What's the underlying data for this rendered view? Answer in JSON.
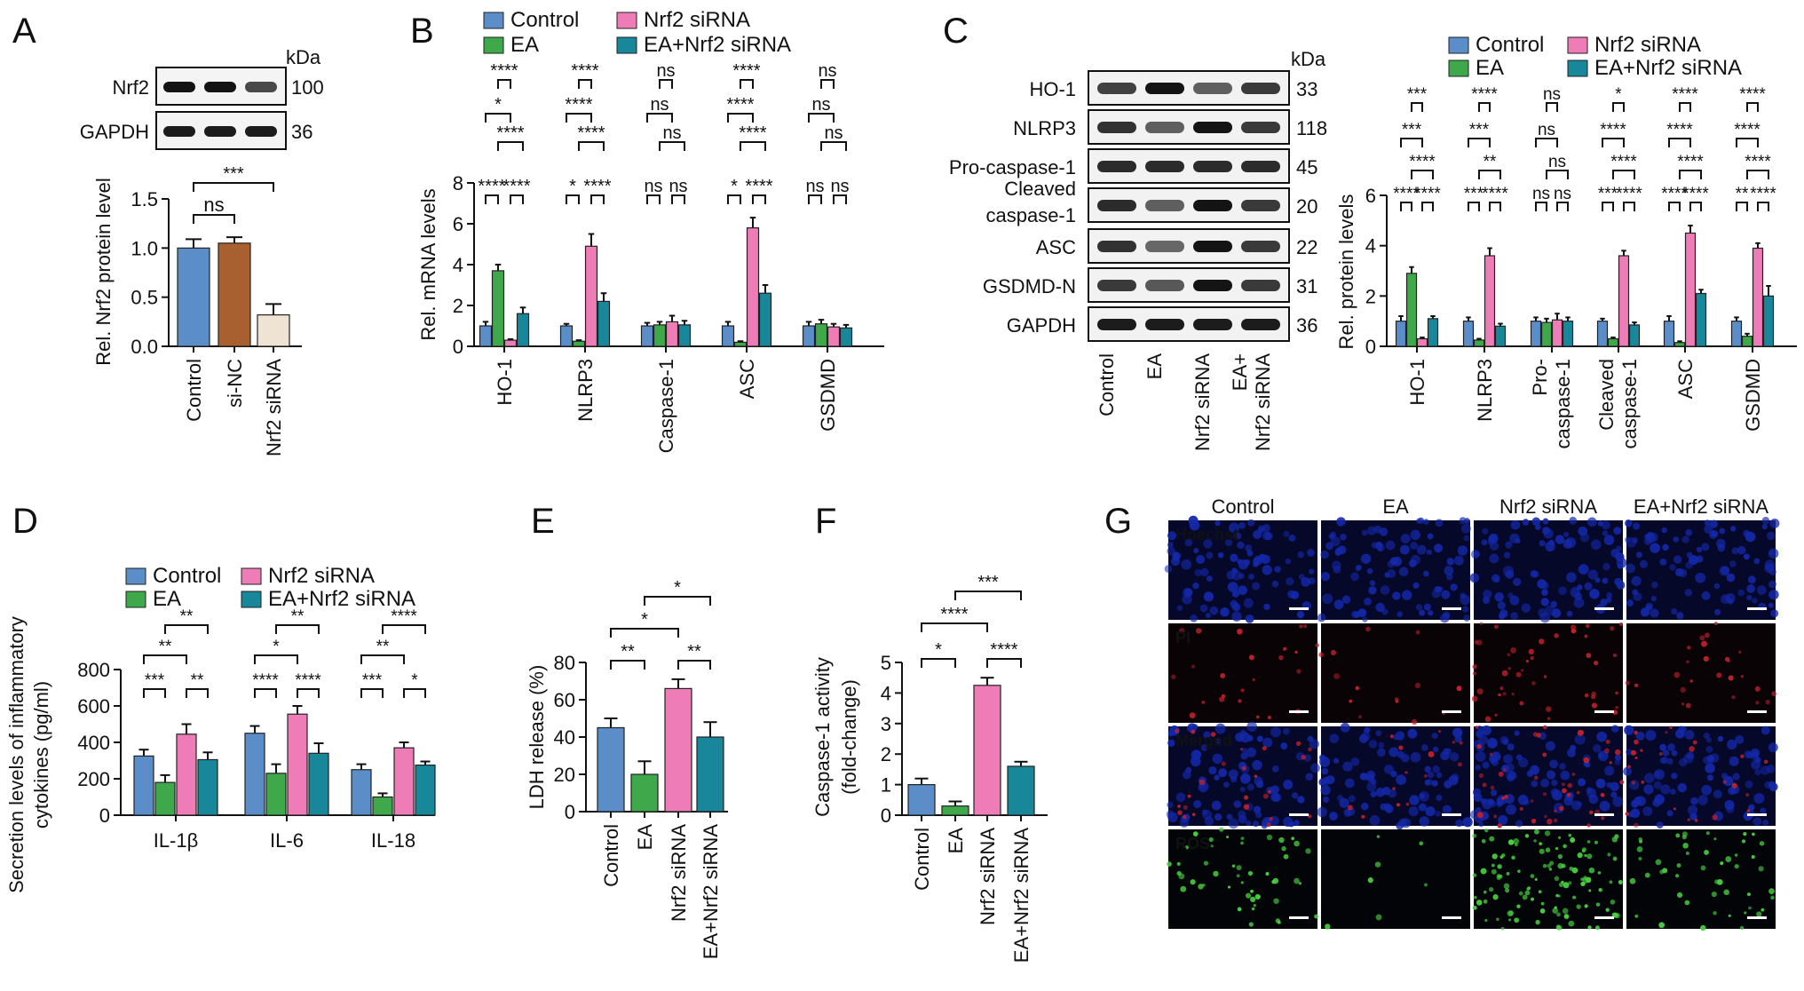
{
  "colors": {
    "control": "#5b8ec9",
    "ea": "#3ea84a",
    "nrf2": "#ee7cb6",
    "ea_nrf2": "#18879a",
    "si_nc": "#a86030",
    "nrf2_si": "#efe3d3",
    "fluor_blue": "#1428a8",
    "fluor_red": "#c0202c",
    "fluor_green": "#48d040"
  },
  "legend_labels": [
    "Control",
    "EA",
    "Nrf2 siRNA",
    "EA+Nrf2 siRNA"
  ],
  "panel_letters": [
    "A",
    "B",
    "C",
    "D",
    "E",
    "F",
    "G"
  ],
  "chart_data": [
    {
      "panel": "A",
      "type": "bar",
      "categories": [
        "Control",
        "si-NC",
        "Nrf2 siRNA"
      ],
      "values": [
        1.0,
        1.05,
        0.32
      ],
      "errors": [
        0.09,
        0.06,
        0.11
      ],
      "ylabel": "Rel. Nrf2 protein level",
      "ylim": [
        0,
        1.5
      ],
      "yticks": [
        "0.0",
        "0.5",
        "1.0",
        "1.5"
      ],
      "significance": [
        "ns",
        "***"
      ],
      "blot": {
        "rows": [
          "Nrf2",
          "GAPDH"
        ],
        "kda": [
          "100",
          "36"
        ],
        "unit": "kDa"
      }
    },
    {
      "panel": "B",
      "type": "bar",
      "ylabel": "Rel. mRNA levels",
      "ylim": [
        0,
        8
      ],
      "yticks": [
        "0",
        "2",
        "4",
        "6",
        "8"
      ],
      "categories": [
        "HO-1",
        "NLRP3",
        "Caspase-1",
        "ASC",
        "GSDMD"
      ],
      "series": [
        {
          "name": "Control",
          "values": [
            1.0,
            1.0,
            1.0,
            1.0,
            1.0
          ],
          "errors": [
            0.2,
            0.1,
            0.15,
            0.2,
            0.2
          ]
        },
        {
          "name": "EA",
          "values": [
            3.7,
            0.25,
            1.05,
            0.2,
            1.1
          ],
          "errors": [
            0.3,
            0.05,
            0.15,
            0.05,
            0.2
          ]
        },
        {
          "name": "Nrf2 siRNA",
          "values": [
            0.3,
            4.9,
            1.2,
            5.8,
            0.95
          ],
          "errors": [
            0.05,
            0.6,
            0.3,
            0.5,
            0.15
          ]
        },
        {
          "name": "EA+Nrf2 siRNA",
          "values": [
            1.6,
            2.2,
            1.05,
            2.6,
            0.9
          ],
          "errors": [
            0.3,
            0.4,
            0.2,
            0.4,
            0.15
          ]
        }
      ],
      "significance": [
        [
          "****",
          "*",
          "****",
          "****",
          "****"
        ],
        [
          "*",
          "****",
          "****",
          "****",
          "****"
        ],
        [
          "ns",
          "ns",
          "ns",
          "ns",
          "ns"
        ],
        [
          "*",
          "****",
          "****",
          "****",
          "****"
        ],
        [
          "ns",
          "ns",
          "ns",
          "ns",
          "ns"
        ]
      ]
    },
    {
      "panel": "C",
      "type": "bar",
      "ylabel": "Rel. protein levels",
      "ylim": [
        0,
        6
      ],
      "yticks": [
        "0",
        "2",
        "4",
        "6"
      ],
      "categories": [
        "HO-1",
        "NLRP3",
        "Pro-\ncaspase-1",
        "Cleaved\ncaspase-1",
        "ASC",
        "GSDMD"
      ],
      "series": [
        {
          "name": "Control",
          "values": [
            1.0,
            1.0,
            1.0,
            1.0,
            1.0,
            1.0
          ],
          "errors": [
            0.2,
            0.15,
            0.15,
            0.1,
            0.2,
            0.15
          ]
        },
        {
          "name": "EA",
          "values": [
            2.9,
            0.25,
            0.95,
            0.3,
            0.15,
            0.4
          ],
          "errors": [
            0.25,
            0.05,
            0.15,
            0.05,
            0.05,
            0.1
          ]
        },
        {
          "name": "Nrf2 siRNA",
          "values": [
            0.3,
            3.6,
            1.05,
            3.6,
            4.5,
            3.9
          ],
          "errors": [
            0.05,
            0.3,
            0.25,
            0.2,
            0.3,
            0.2
          ]
        },
        {
          "name": "EA+Nrf2 siRNA",
          "values": [
            1.1,
            0.8,
            1.0,
            0.85,
            2.1,
            2.0
          ],
          "errors": [
            0.1,
            0.1,
            0.15,
            0.1,
            0.15,
            0.4
          ]
        }
      ],
      "significance": [
        [
          "****",
          "***",
          "****",
          "***",
          "****"
        ],
        [
          "***",
          "***",
          "****",
          "****",
          "**"
        ],
        [
          "ns",
          "ns",
          "ns",
          "ns",
          "ns"
        ],
        [
          "***",
          "****",
          "****",
          "*",
          "****"
        ],
        [
          "****",
          "****",
          "****",
          "****",
          "****"
        ],
        [
          "**",
          "****",
          "****",
          "****",
          "****"
        ]
      ],
      "blot": {
        "rows": [
          "HO-1",
          "NLRP3",
          "Pro-caspase-1",
          "Cleaved caspase-1",
          "ASC",
          "GSDMD-N",
          "GAPDH"
        ],
        "kda": [
          "33",
          "118",
          "45",
          "20",
          "22",
          "31",
          "36"
        ],
        "unit": "kDa",
        "lanes": [
          "Control",
          "EA",
          "Nrf2 siRNA",
          "EA+\nNrf2 siRNA"
        ]
      }
    },
    {
      "panel": "D",
      "type": "bar",
      "ylabel": "Secretion levels of inflammatory\ncytokines (pg/ml)",
      "ylim": [
        0,
        800
      ],
      "yticks": [
        "0",
        "200",
        "400",
        "600",
        "800"
      ],
      "categories": [
        "IL-1β",
        "IL-6",
        "IL-18"
      ],
      "series": [
        {
          "name": "Control",
          "values": [
            325,
            450,
            250
          ],
          "errors": [
            35,
            40,
            30
          ]
        },
        {
          "name": "EA",
          "values": [
            180,
            230,
            100
          ],
          "errors": [
            40,
            50,
            20
          ]
        },
        {
          "name": "Nrf2 siRNA",
          "values": [
            445,
            555,
            370
          ],
          "errors": [
            55,
            45,
            30
          ]
        },
        {
          "name": "EA+Nrf2 siRNA",
          "values": [
            305,
            340,
            275
          ],
          "errors": [
            40,
            55,
            20
          ]
        }
      ],
      "significance": [
        [
          "***",
          "**",
          "**",
          "**"
        ],
        [
          "****",
          "*",
          "****",
          "**"
        ],
        [
          "***",
          "**",
          "*",
          "****"
        ]
      ]
    },
    {
      "panel": "E",
      "type": "bar",
      "ylabel": "LDH release (%)",
      "ylim": [
        0,
        80
      ],
      "yticks": [
        "0",
        "20",
        "40",
        "60",
        "80"
      ],
      "categories": [
        "Control",
        "EA",
        "Nrf2 siRNA",
        "EA+Nrf2 siRNA"
      ],
      "values": [
        45,
        20,
        66,
        40
      ],
      "errors": [
        5,
        7,
        5,
        8
      ],
      "significance": [
        "**",
        "**",
        "*",
        "*"
      ]
    },
    {
      "panel": "F",
      "type": "bar",
      "ylabel": "Caspase-1 activity\n(fold-change)",
      "ylim": [
        0,
        5
      ],
      "yticks": [
        "0",
        "1",
        "2",
        "3",
        "4",
        "5"
      ],
      "categories": [
        "Control",
        "EA",
        "Nrf2 siRNA",
        "EA+Nrf2 siRNA"
      ],
      "values": [
        1.0,
        0.3,
        4.25,
        1.6
      ],
      "errors": [
        0.2,
        0.15,
        0.25,
        0.15
      ],
      "significance": [
        "*",
        "****",
        "****",
        "***"
      ]
    }
  ],
  "panel_g": {
    "columns": [
      "Control",
      "EA",
      "Nrf2 siRNA",
      "EA+Nrf2 siRNA"
    ],
    "rows": [
      "Hoechst",
      "PI",
      "Merged",
      "ROS"
    ],
    "ros_density": [
      0.35,
      0.05,
      0.85,
      0.35
    ],
    "pi_density": [
      0.35,
      0.2,
      0.65,
      0.35
    ]
  }
}
